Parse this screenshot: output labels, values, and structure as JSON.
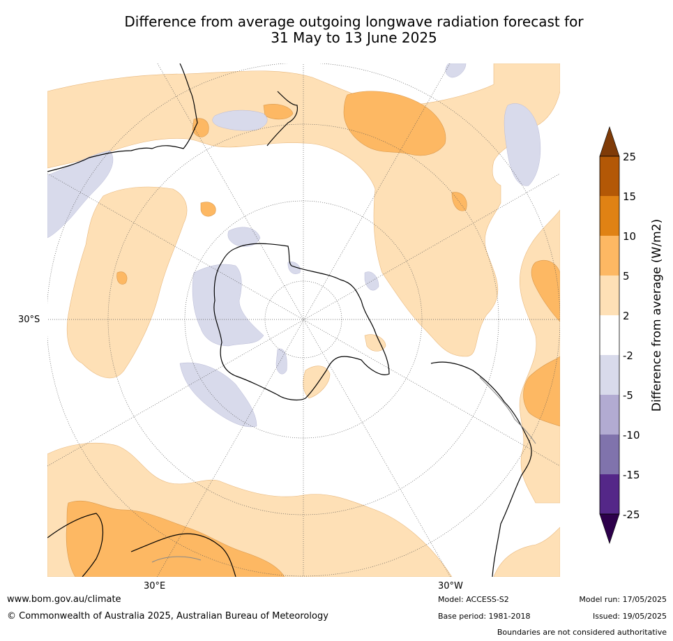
{
  "title_line1": "Difference from average outgoing longwave radiation forecast for",
  "title_line2": "31 May to 13 June 2025",
  "map_labels": {
    "lat": "30°S",
    "lon_east": "30°E",
    "lon_west": "30°W"
  },
  "colorbar": {
    "label": "Difference from average (W/m2)",
    "ticks": [
      "25",
      "15",
      "10",
      "5",
      "2",
      "-2",
      "-5",
      "-10",
      "-15",
      "-25"
    ],
    "colors": {
      "over": "#7f3b08",
      "15_25": "#b35806",
      "10_15": "#e08214",
      "5_10": "#fdb863",
      "2_5": "#fee0b6",
      "m2_2": "#ffffff",
      "m5_m2": "#d8daeb",
      "m10_m5": "#b2abd2",
      "m15_m10": "#8073ac",
      "m25_m15": "#542788",
      "under": "#2d004b"
    }
  },
  "footer": {
    "website": "www.bom.gov.au/climate",
    "copyright": "© Commonwealth of Australia 2025, Australian Bureau of Meteorology",
    "model": "Model: ACCESS-S2",
    "base_period": "Base period: 1981-2018",
    "model_run": "Model run: 17/05/2025",
    "issued": "Issued: 19/05/2025",
    "disclaimer": "Boundaries are not considered authoritative"
  }
}
